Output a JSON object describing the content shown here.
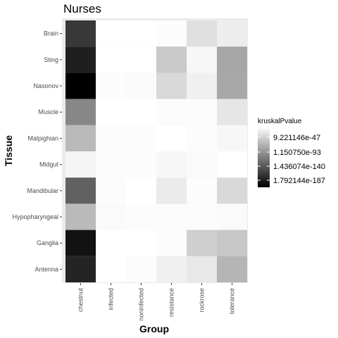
{
  "chart_data": {
    "type": "heatmap",
    "title": "Nurses",
    "xlabel": "Group",
    "ylabel": "Tissue",
    "x_categories": [
      "chestnut",
      "infected",
      "noninfected",
      "resistance",
      "rockrose",
      "tolerance"
    ],
    "y_categories": [
      "Brain",
      "Sting",
      "Nasonov",
      "Muscle",
      "Malpighian",
      "Midgut",
      "Mandibular",
      "Hypopharyngeal",
      "Ganglia",
      "Antenna"
    ],
    "shade_scale": "0 = white (least significant), 1 = black (most significant)",
    "cells": [
      [
        0.78,
        0.0,
        0.0,
        0.01,
        0.12,
        0.07
      ],
      [
        0.88,
        0.0,
        0.0,
        0.21,
        0.03,
        0.35
      ],
      [
        1.0,
        0.01,
        0.02,
        0.15,
        0.06,
        0.34
      ],
      [
        0.47,
        0.0,
        0.0,
        0.01,
        0.01,
        0.1
      ],
      [
        0.27,
        0.01,
        0.01,
        0.0,
        0.01,
        0.03
      ],
      [
        0.04,
        0.01,
        0.01,
        0.03,
        0.02,
        0.0
      ],
      [
        0.62,
        0.01,
        0.0,
        0.08,
        0.01,
        0.15
      ],
      [
        0.27,
        0.02,
        0.01,
        0.01,
        0.01,
        0.02
      ],
      [
        0.93,
        0.0,
        0.0,
        0.01,
        0.19,
        0.22
      ],
      [
        0.86,
        0.0,
        0.01,
        0.06,
        0.09,
        0.29
      ]
    ],
    "legend": {
      "title": "kruskalPvalue",
      "labels": [
        "9.221146e-47",
        "1.150750e-93",
        "1.436074e-140",
        "1.792144e-187"
      ],
      "position": "right"
    },
    "grid": true
  }
}
